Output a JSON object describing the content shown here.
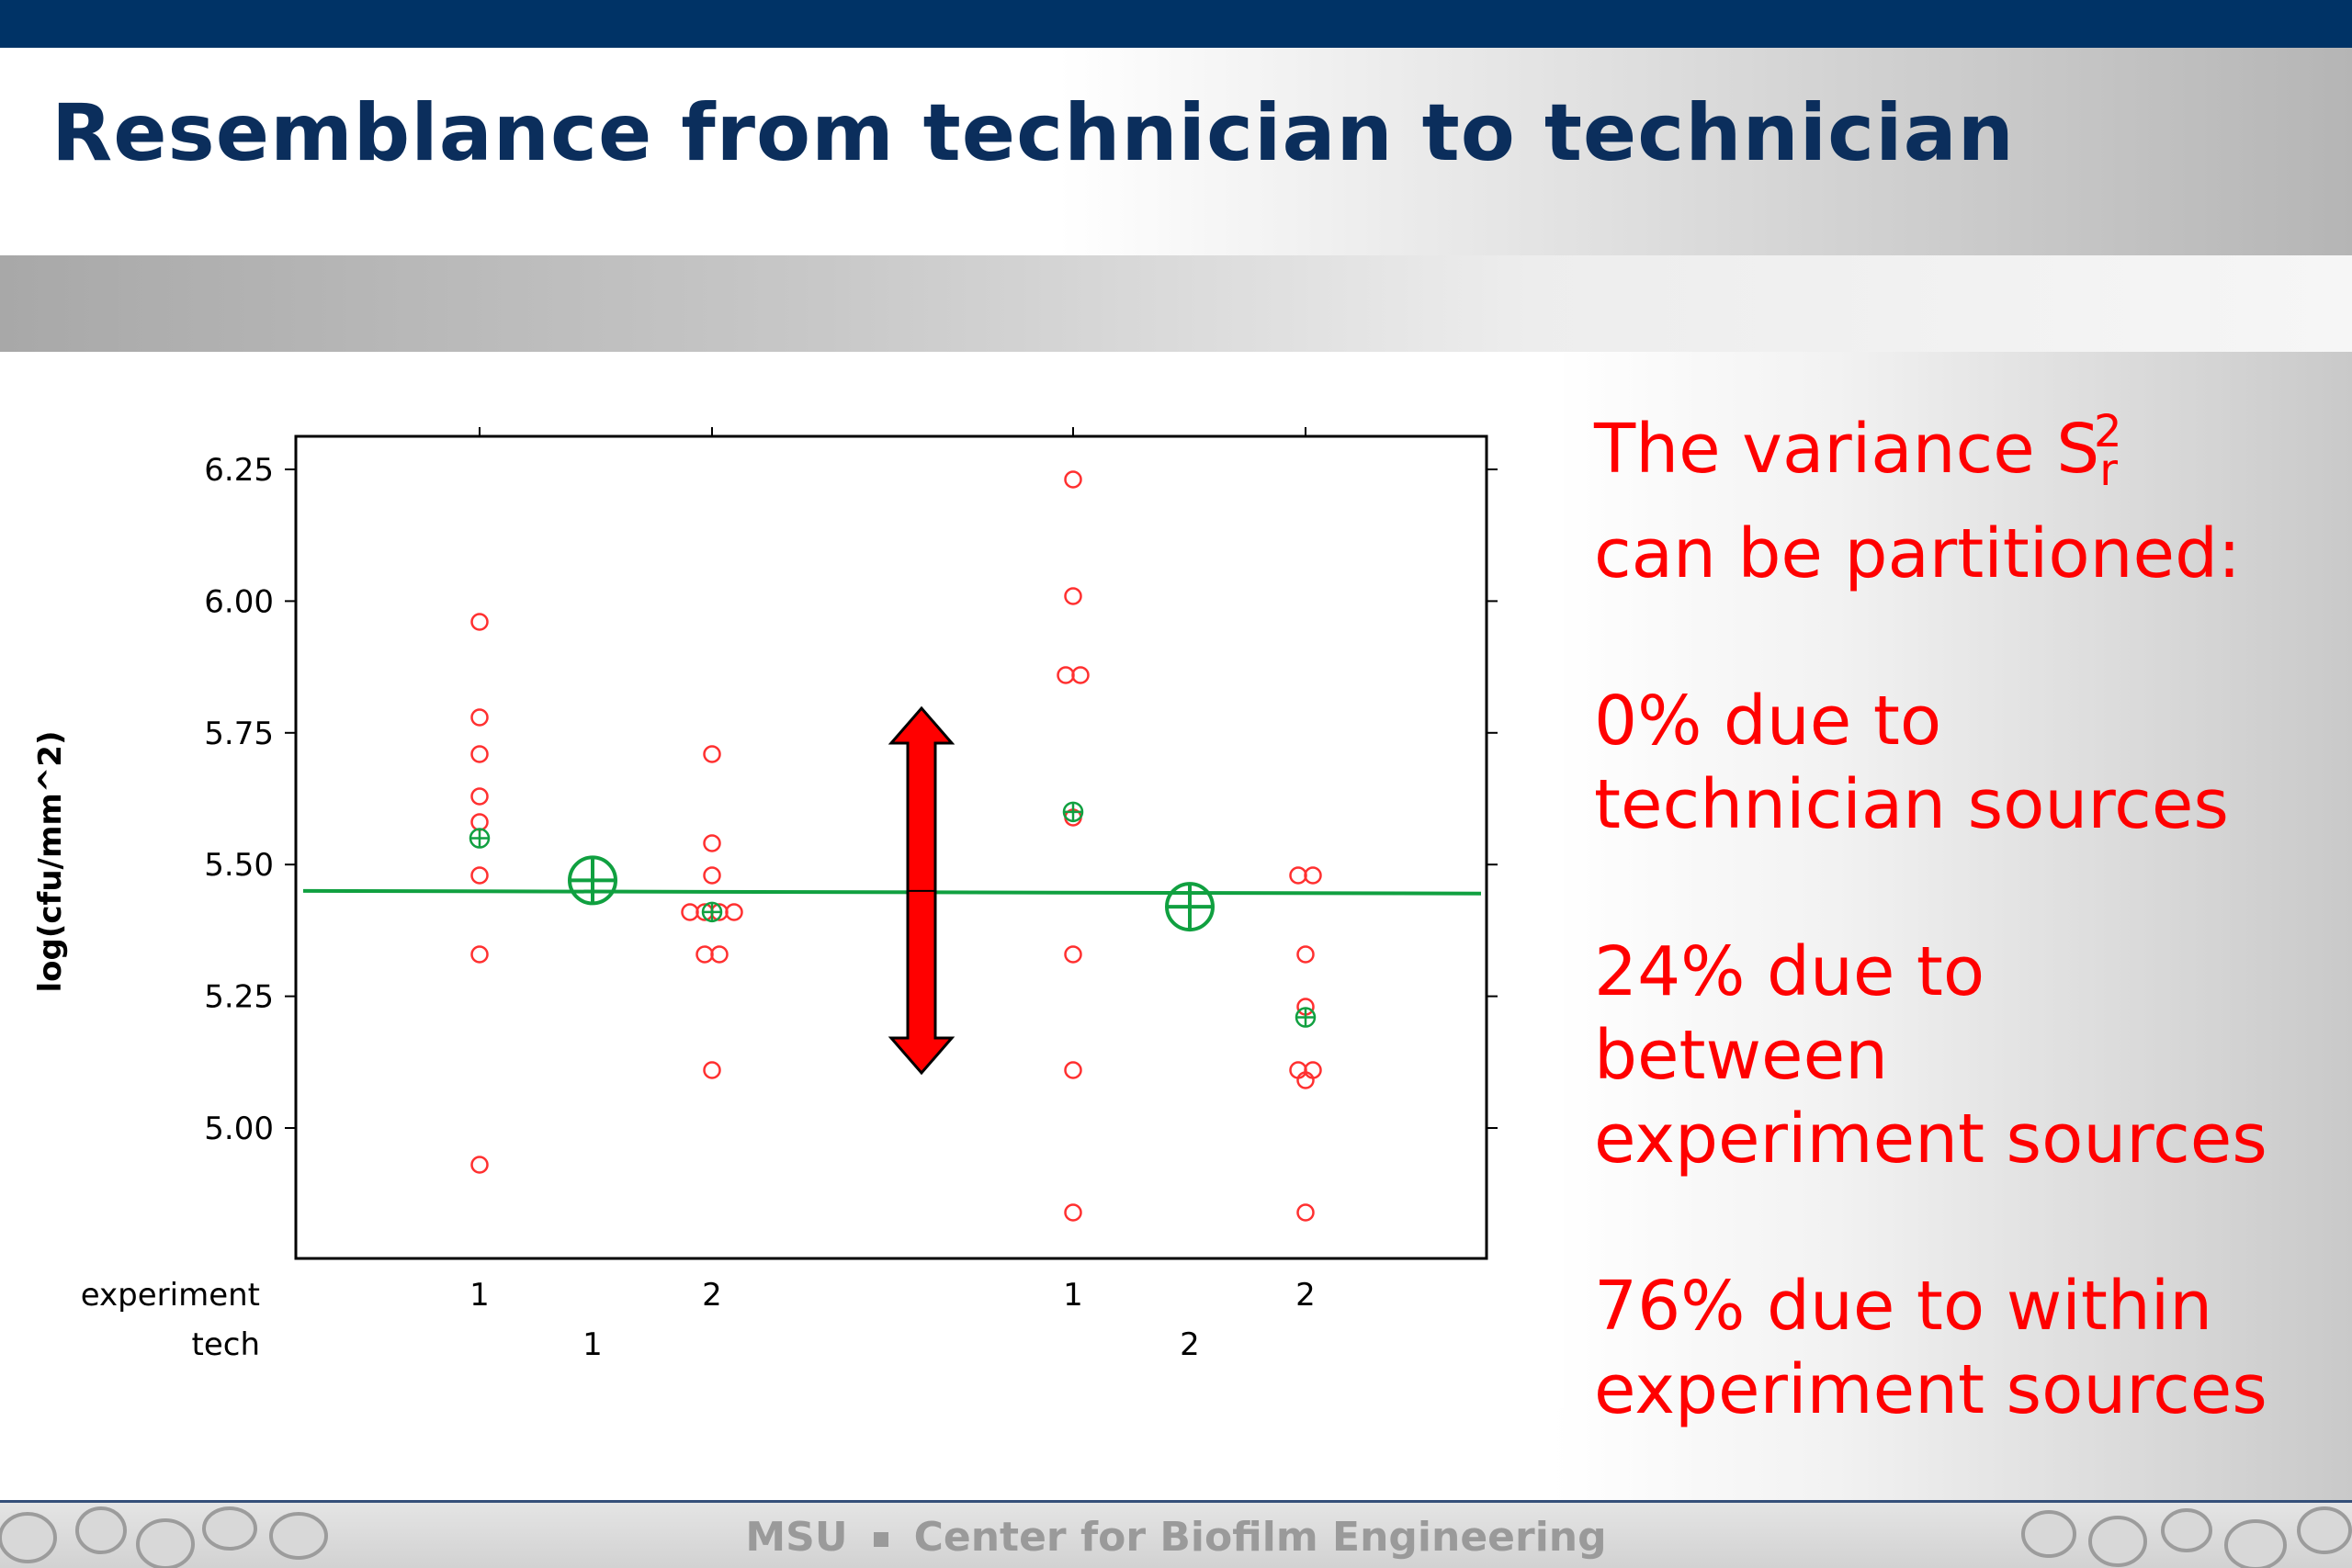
{
  "slide": {
    "title": "Resemblance from technician to technician",
    "footer_left": "MSU",
    "footer_right": "Center for Biofilm Engineering"
  },
  "text_panel": {
    "heading": [
      "The variance S",
      "can be partitioned:"
    ],
    "heading_sub": "r",
    "heading_sup": "2",
    "items": [
      [
        "0% due to",
        "technician sources"
      ],
      [
        "24% due to",
        "between",
        "experiment sources"
      ],
      [
        "76% due to within",
        "experiment sources"
      ]
    ]
  },
  "chart_data": {
    "type": "scatter",
    "ylabel": "log(cfu/mm^2)",
    "ylim": [
      4.62,
      6.28
    ],
    "yticks": [
      "5.00",
      "5.25",
      "5.50",
      "5.75",
      "6.00",
      "6.25"
    ],
    "row_labels": [
      "experiment",
      "tech"
    ],
    "groups": [
      {
        "tech": "1",
        "experiment": "1",
        "values": [
          5.96,
          5.78,
          5.71,
          5.63,
          5.58,
          5.48,
          5.33,
          4.93
        ],
        "mean": 5.55
      },
      {
        "tech": "1",
        "experiment": "2",
        "values": [
          5.71,
          5.54,
          5.48,
          5.41,
          5.41,
          5.41,
          5.41,
          5.33,
          5.33,
          5.11
        ],
        "mean": 5.41
      },
      {
        "tech": "2",
        "experiment": "1",
        "values": [
          6.23,
          6.01,
          5.86,
          5.86,
          5.59,
          5.33,
          5.11,
          4.84
        ],
        "mean": 5.6
      },
      {
        "tech": "2",
        "experiment": "2",
        "values": [
          5.48,
          5.48,
          5.33,
          5.23,
          5.11,
          5.11,
          5.09,
          4.84
        ],
        "mean": 5.21
      }
    ],
    "tech_means": [
      {
        "tech": "1",
        "mean": 5.47
      },
      {
        "tech": "2",
        "mean": 5.42
      }
    ],
    "grand_mean_line": [
      5.45,
      5.445
    ],
    "colors": {
      "points": "#ff3030",
      "means": "#10a040",
      "arrow": "#ff0000",
      "axis": "#000000"
    }
  }
}
